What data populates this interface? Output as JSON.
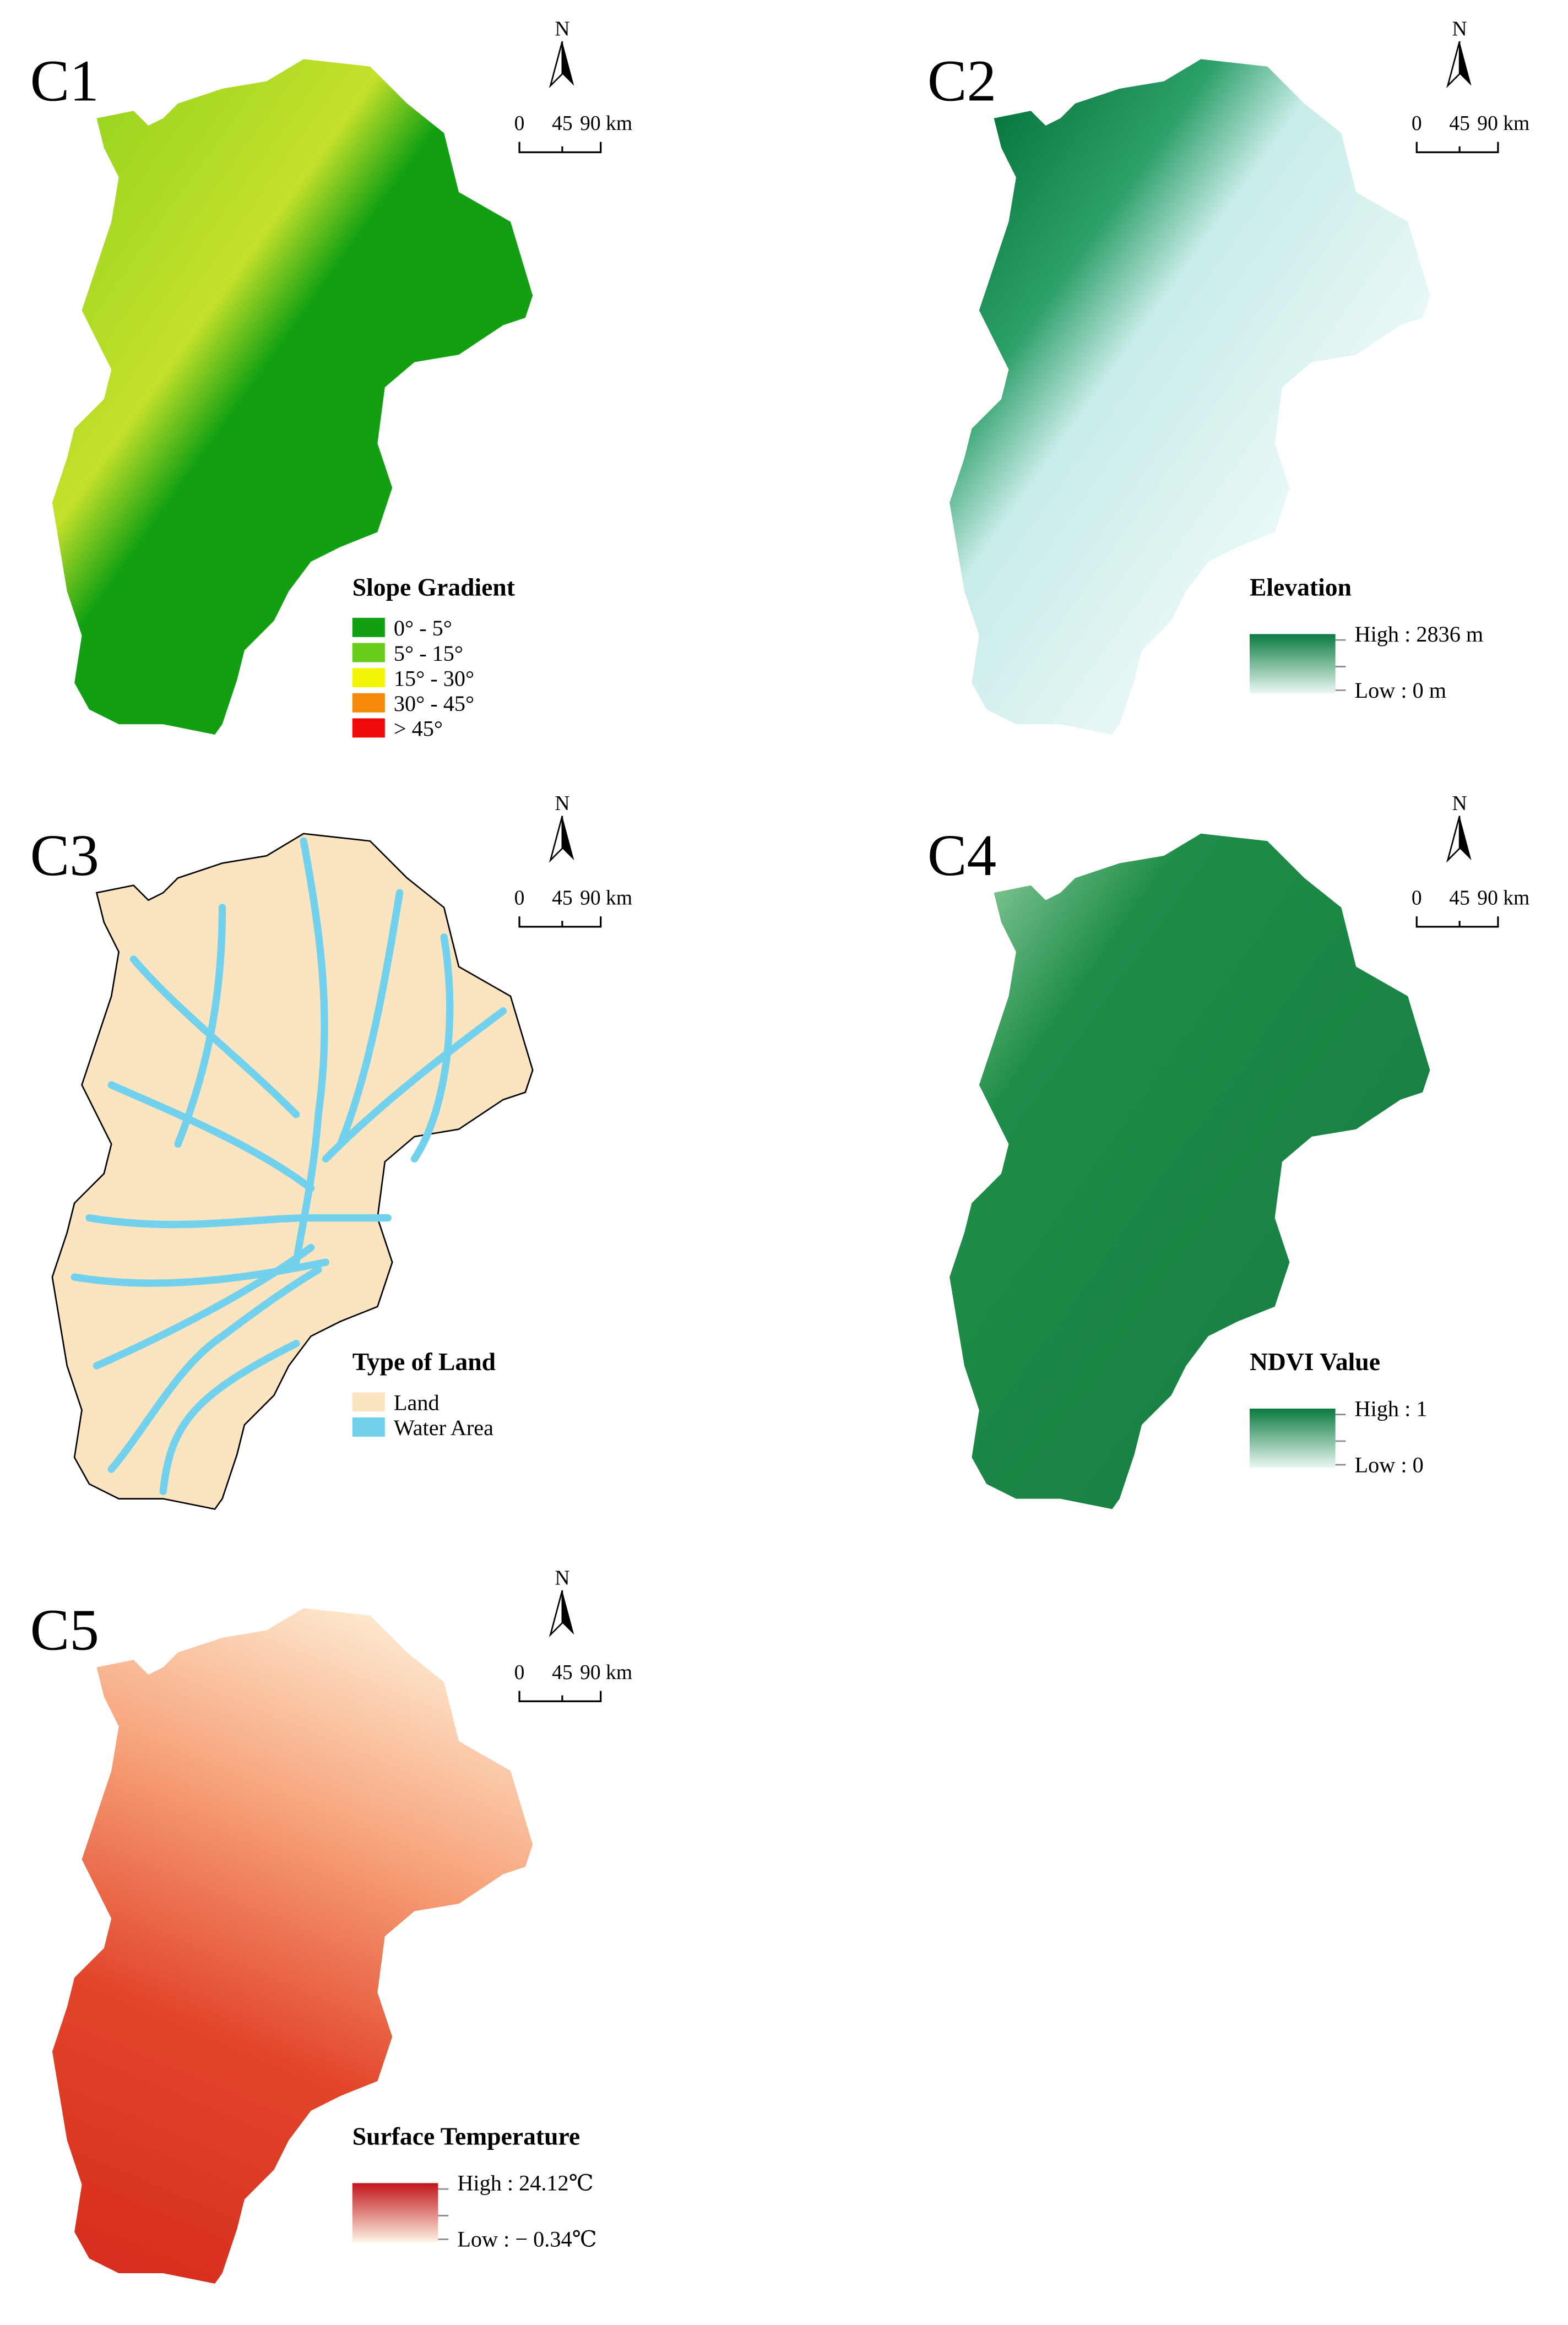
{
  "panels": [
    {
      "label": "C1",
      "north": "N",
      "scale": [
        "0",
        "45",
        "90 km"
      ],
      "fill": "slope",
      "legend": {
        "title": "Slope Gradient",
        "items": [
          {
            "label": "0° - 5°",
            "color": "#12a012"
          },
          {
            "label": "5° - 15°",
            "color": "#66cc1a"
          },
          {
            "label": "15° - 30°",
            "color": "#f5f50a"
          },
          {
            "label": "30° - 45°",
            "color": "#f58a0a"
          },
          {
            "label": "> 45°",
            "color": "#f00a0a"
          }
        ]
      }
    },
    {
      "label": "C2",
      "north": "N",
      "scale": [
        "0",
        "45",
        "90 km"
      ],
      "fill": "elev",
      "legend": {
        "title": "Elevation",
        "high": "High : 2836 m",
        "low": "Low : 0 m"
      }
    },
    {
      "label": "C3",
      "north": "N",
      "scale": [
        "0",
        "45",
        "90 km"
      ],
      "fill": "land",
      "legend": {
        "title": "Type of Land",
        "items": [
          {
            "label": "Land",
            "color": "#fbe5c0"
          },
          {
            "label": "Water Area",
            "color": "#72d2ee"
          }
        ]
      }
    },
    {
      "label": "C4",
      "north": "N",
      "scale": [
        "0",
        "45",
        "90 km"
      ],
      "fill": "ndvi",
      "legend": {
        "title": "NDVI Value",
        "high": "High : 1",
        "low": "Low : 0"
      }
    },
    {
      "label": "C5",
      "north": "N",
      "scale": [
        "0",
        "45",
        "90 km"
      ],
      "fill": "temp",
      "legend": {
        "title": "Surface Temperature",
        "high": "High : 24.12℃",
        "low": "Low : − 0.34℃"
      }
    }
  ]
}
